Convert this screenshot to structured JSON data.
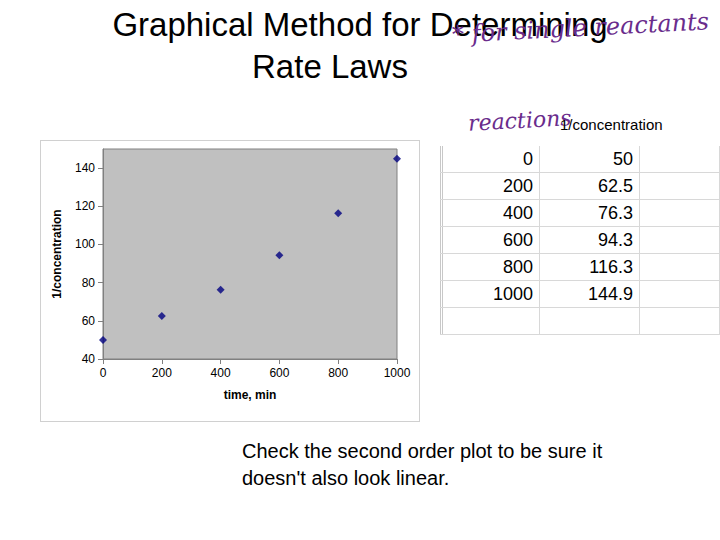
{
  "slide": {
    "title": [
      "Graphical Method for Determining",
      "Rate Laws"
    ],
    "annotation": [
      "* for single reactants",
      "reactions"
    ],
    "table": {
      "header": "1/concentration",
      "rows": [
        [
          0,
          50
        ],
        [
          200,
          62.5
        ],
        [
          400,
          76.3
        ],
        [
          600,
          94.3
        ],
        [
          800,
          116.3
        ],
        [
          1000,
          144.9
        ]
      ]
    },
    "caption": [
      "Check the second order plot to be sure it",
      "doesn't also look linear."
    ]
  },
  "chart_data": {
    "type": "scatter",
    "x": [
      0,
      200,
      400,
      600,
      800,
      1000
    ],
    "values": [
      50,
      62.5,
      76.3,
      94.3,
      116.3,
      144.9
    ],
    "color": "#000080",
    "marker": "diamond",
    "x_label": "time, min",
    "y_label": "1/concentration",
    "xlim": [
      0,
      1000
    ],
    "xticks": [
      0,
      200,
      400,
      600,
      800,
      1000
    ],
    "ylim": [
      40,
      150
    ],
    "yticks": [
      40,
      60,
      80,
      100,
      120,
      140
    ],
    "grid": false
  }
}
